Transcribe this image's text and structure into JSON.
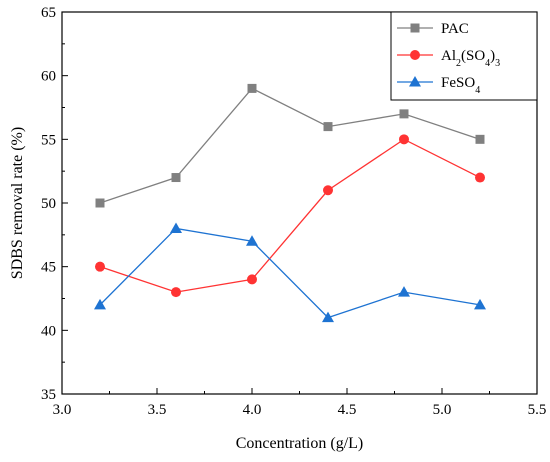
{
  "chart_data": {
    "type": "line",
    "xlabel": "Concentration (g/L)",
    "ylabel": "SDBS removal rate (%)",
    "xlim": [
      3.0,
      5.5
    ],
    "ylim": [
      35,
      65
    ],
    "x_ticks": [
      "3.0",
      "3.5",
      "4.0",
      "4.5",
      "5.0",
      "5.5"
    ],
    "y_ticks": [
      "35",
      "40",
      "45",
      "50",
      "55",
      "60",
      "65"
    ],
    "grid": false,
    "legend_position": "top-right",
    "x": [
      3.2,
      3.6,
      4.0,
      4.4,
      4.8,
      5.2
    ],
    "series": [
      {
        "name": "PAC",
        "color": "#808080",
        "marker": "square",
        "values": [
          50,
          52,
          59,
          56,
          57,
          55
        ]
      },
      {
        "name": "Al2(SO4)3",
        "color": "#ff3333",
        "marker": "circle",
        "values": [
          45,
          43,
          44,
          51,
          55,
          52
        ]
      },
      {
        "name": "FeSO4",
        "color": "#1e73d2",
        "marker": "triangle",
        "values": [
          42,
          48,
          47,
          41,
          43,
          42
        ]
      }
    ]
  }
}
